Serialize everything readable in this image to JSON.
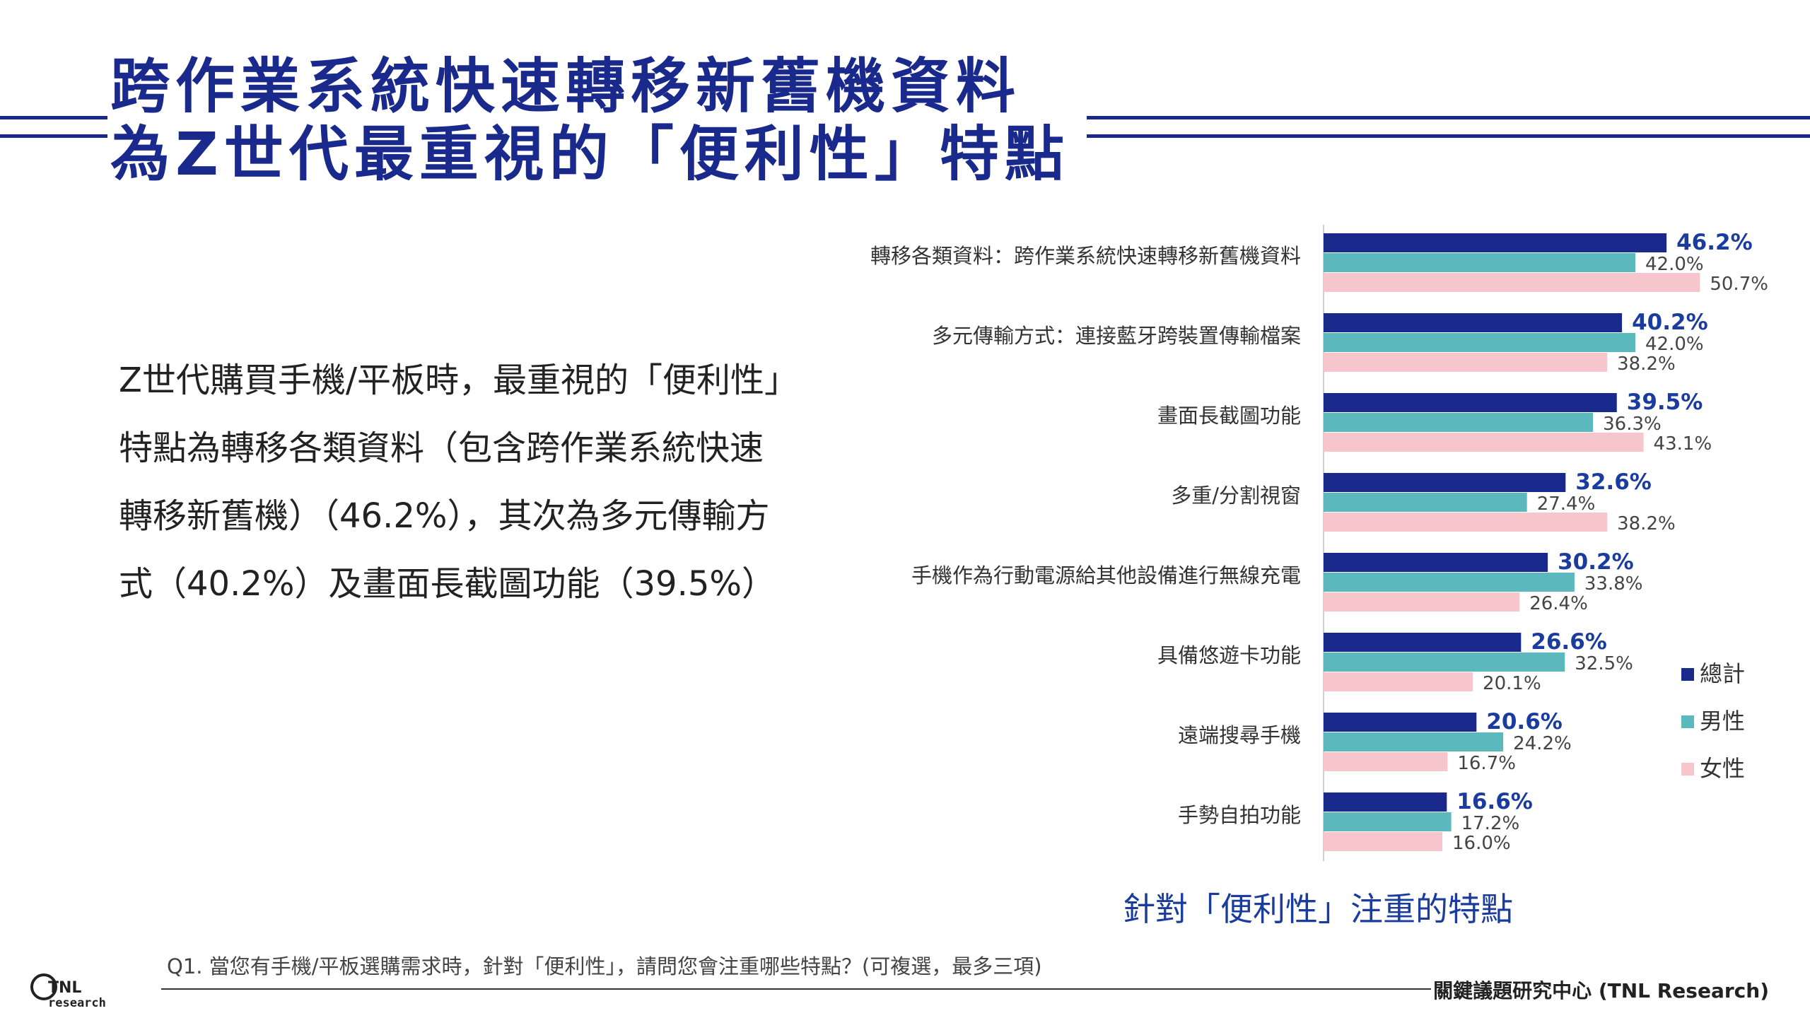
{
  "title": {
    "line1": "跨作業系統快速轉移新舊機資料",
    "line2": "為Z世代最重視的「便利性」特點"
  },
  "body": {
    "text": "Z世代購買手機/平板時，最重視的「便利性」特點為轉移各類資料（包含跨作業系統快速轉移新舊機）（46.2%），其次為多元傳輸方式（40.2%）及畫面長截圖功能（39.5%）"
  },
  "chart_data": {
    "type": "bar",
    "orientation": "horizontal",
    "categories": [
      "轉移各類資料：跨作業系統快速轉移新舊機資料",
      "多元傳輸方式：連接藍牙跨裝置傳輸檔案",
      "畫面長截圖功能",
      "多重/分割視窗",
      "手機作為行動電源給其他設備進行無線充電",
      "具備悠遊卡功能",
      "遠端搜尋手機",
      "手勢自拍功能"
    ],
    "series": [
      {
        "name": "總計",
        "color": "#1a2a8c",
        "values": [
          46.2,
          40.2,
          39.5,
          32.6,
          30.2,
          26.6,
          20.6,
          16.6
        ]
      },
      {
        "name": "男性",
        "color": "#5bb8bd",
        "values": [
          42.0,
          42.0,
          36.3,
          27.4,
          33.8,
          32.5,
          24.2,
          17.2
        ]
      },
      {
        "name": "女性",
        "color": "#f6c6cc",
        "values": [
          50.7,
          38.2,
          43.1,
          38.2,
          26.4,
          20.1,
          16.7,
          16.0
        ]
      }
    ],
    "value_suffix": "%",
    "legend_position": "right",
    "subtitle": "針對「便利性」注重的特點"
  },
  "footer": {
    "question": "Q1. 當您有手機/平板選購需求時，針對「便利性」，請問您會注重哪些特點？(可複選，最多三項)",
    "source": "關鍵議題研究中心 (TNL Research)",
    "logo_text_top": "TNL",
    "logo_text_bottom": "research"
  }
}
